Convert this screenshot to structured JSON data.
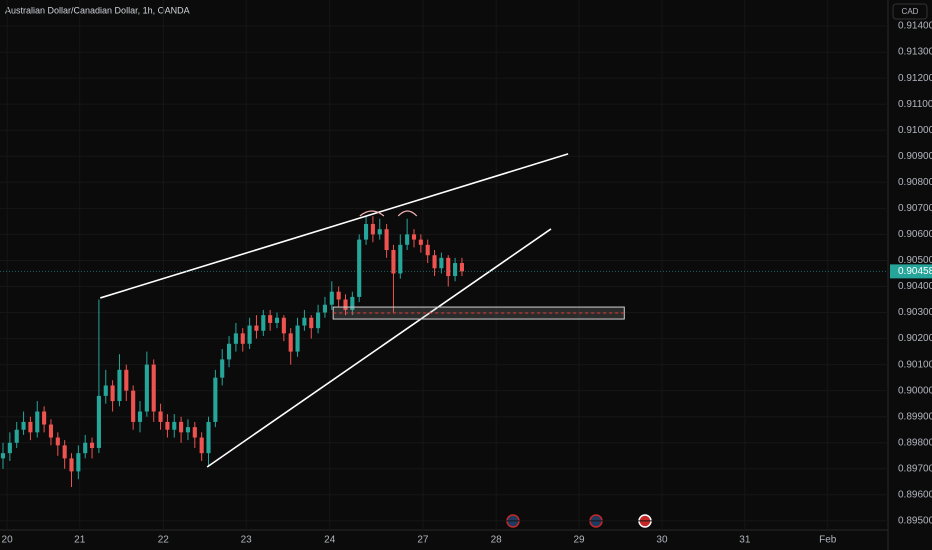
{
  "chart_data": {
    "type": "candlestick",
    "title": "Australian Dollar/Canadian Dollar, 1h, OANDA",
    "currency": "CAD",
    "up_color": "#26a69a",
    "down_color": "#ef5350",
    "open": [
      0.8974,
      0.8976,
      0.898,
      0.8985,
      0.8988,
      0.8984,
      0.8992,
      0.8987,
      0.8982,
      0.8979,
      0.8974,
      0.8969,
      0.8976,
      0.898,
      0.8978,
      0.8998,
      0.9002,
      0.8996,
      0.9008,
      0.9,
      0.8988,
      0.8992,
      0.901,
      0.8992,
      0.8988,
      0.8985,
      0.8988,
      0.8984,
      0.8986,
      0.8982,
      0.8976,
      0.8988,
      0.9005,
      0.9012,
      0.9018,
      0.9022,
      0.9018,
      0.9025,
      0.9023,
      0.9029,
      0.9026,
      0.9028,
      0.9022,
      0.9015,
      0.9025,
      0.9028,
      0.9024,
      0.903,
      0.9033,
      0.9038,
      0.9035,
      0.9031,
      0.9036,
      0.9058,
      0.9064,
      0.906,
      0.9062,
      0.9054,
      0.9045,
      0.9056,
      0.906,
      0.9058,
      0.9056,
      0.9052,
      0.9047,
      0.9051,
      0.9044,
      0.9049
    ],
    "high": [
      0.898,
      0.8984,
      0.8988,
      0.8992,
      0.899,
      0.8996,
      0.8994,
      0.8989,
      0.8984,
      0.8981,
      0.8976,
      0.8979,
      0.8983,
      0.8982,
      0.9035,
      0.9008,
      0.9004,
      0.9014,
      0.901,
      0.9002,
      0.8996,
      0.9015,
      0.9012,
      0.8995,
      0.8991,
      0.8991,
      0.899,
      0.8989,
      0.8988,
      0.8984,
      0.899,
      0.9008,
      0.9016,
      0.9021,
      0.9026,
      0.9024,
      0.9028,
      0.9029,
      0.9031,
      0.9031,
      0.903,
      0.9029,
      0.9024,
      0.9028,
      0.9031,
      0.9029,
      0.9033,
      0.9036,
      0.9042,
      0.904,
      0.9037,
      0.9038,
      0.906,
      0.9067,
      0.9067,
      0.9066,
      0.9064,
      0.9056,
      0.906,
      0.9066,
      0.9062,
      0.906,
      0.9058,
      0.9054,
      0.9053,
      0.9052,
      0.9051,
      0.9051
    ],
    "low": [
      0.897,
      0.8973,
      0.8978,
      0.8983,
      0.8981,
      0.8982,
      0.8984,
      0.8979,
      0.8975,
      0.897,
      0.8963,
      0.8966,
      0.8974,
      0.8974,
      0.8976,
      0.8995,
      0.8992,
      0.8994,
      0.8996,
      0.8985,
      0.8984,
      0.899,
      0.8988,
      0.8985,
      0.8982,
      0.8982,
      0.898,
      0.8981,
      0.8978,
      0.8973,
      0.8971,
      0.8986,
      0.9002,
      0.9009,
      0.9015,
      0.9015,
      0.9016,
      0.902,
      0.9021,
      0.9023,
      0.9024,
      0.9019,
      0.901,
      0.9013,
      0.9023,
      0.902,
      0.9022,
      0.9028,
      0.9031,
      0.9032,
      0.9029,
      0.9029,
      0.9034,
      0.9056,
      0.9057,
      0.9058,
      0.9051,
      0.903,
      0.9043,
      0.9054,
      0.9055,
      0.9053,
      0.9049,
      0.9044,
      0.9045,
      0.904,
      0.9042,
      0.9044
    ],
    "close": [
      0.8976,
      0.898,
      0.8985,
      0.8988,
      0.8984,
      0.8992,
      0.8987,
      0.8982,
      0.8979,
      0.8974,
      0.8969,
      0.8976,
      0.898,
      0.8978,
      0.8998,
      0.9002,
      0.8996,
      0.9008,
      0.9,
      0.8988,
      0.8992,
      0.901,
      0.8992,
      0.8988,
      0.8985,
      0.8988,
      0.8984,
      0.8986,
      0.8982,
      0.8976,
      0.8988,
      0.9005,
      0.9012,
      0.9018,
      0.9022,
      0.9018,
      0.9025,
      0.9023,
      0.9029,
      0.9026,
      0.9028,
      0.9022,
      0.9015,
      0.9025,
      0.9028,
      0.9024,
      0.903,
      0.9033,
      0.9038,
      0.9035,
      0.9031,
      0.9036,
      0.9058,
      0.9064,
      0.906,
      0.9062,
      0.9054,
      0.9045,
      0.9056,
      0.906,
      0.9058,
      0.9056,
      0.9052,
      0.9047,
      0.9051,
      0.9044,
      0.9049,
      0.90458
    ],
    "last_price": {
      "value": 0.90458,
      "label": "0.90458"
    },
    "xlim": [
      -0.44,
      129.2
    ],
    "xticks": [
      {
        "value": 0.6,
        "label": "20"
      },
      {
        "value": 11.2,
        "label": "21"
      },
      {
        "value": 23.4,
        "label": "22"
      },
      {
        "value": 35.5,
        "label": "23"
      },
      {
        "value": 47.7,
        "label": "24"
      },
      {
        "value": 61.3,
        "label": "27"
      },
      {
        "value": 72,
        "label": "28"
      },
      {
        "value": 84.1,
        "label": "29"
      },
      {
        "value": 96.2,
        "label": "30"
      },
      {
        "value": 108.3,
        "label": "31"
      },
      {
        "value": 120.4,
        "label": "Feb"
      }
    ],
    "ylim": [
      0.89465,
      0.915
    ],
    "yticks": [
      {
        "value": 0.895,
        "label": "0.89500"
      },
      {
        "value": 0.896,
        "label": "0.89600"
      },
      {
        "value": 0.897,
        "label": "0.89700"
      },
      {
        "value": 0.898,
        "label": "0.89800"
      },
      {
        "value": 0.899,
        "label": "0.89900"
      },
      {
        "value": 0.9,
        "label": "0.90000"
      },
      {
        "value": 0.901,
        "label": "0.90100"
      },
      {
        "value": 0.902,
        "label": "0.90200"
      },
      {
        "value": 0.903,
        "label": "0.90300"
      },
      {
        "value": 0.904,
        "label": "0.90400"
      },
      {
        "value": 0.905,
        "label": "0.90500"
      },
      {
        "value": 0.906,
        "label": "0.90600"
      },
      {
        "value": 0.907,
        "label": "0.90700"
      },
      {
        "value": 0.908,
        "label": "0.90800"
      },
      {
        "value": 0.909,
        "label": "0.90900"
      },
      {
        "value": 0.91,
        "label": "0.91000"
      },
      {
        "value": 0.911,
        "label": "0.91100"
      },
      {
        "value": 0.912,
        "label": "0.91200"
      },
      {
        "value": 0.913,
        "label": "0.91300"
      },
      {
        "value": 0.914,
        "label": "0.91400"
      }
    ],
    "grid": true,
    "trendlines": [
      {
        "x": [
          14.2,
          82.5
        ],
        "y": [
          0.90356,
          0.90909
        ]
      },
      {
        "x": [
          29.8,
          80
        ],
        "y": [
          0.89707,
          0.90621
        ]
      }
    ],
    "zone": {
      "x": [
        48.2,
        90.7
      ],
      "y": [
        0.90275,
        0.90321
      ],
      "mid": 0.90298
    },
    "arcs": [
      {
        "x": [
          52.1,
          55.6
        ],
        "y": 0.90686
      },
      {
        "x": [
          57.7,
          60.4
        ],
        "y": 0.90686
      }
    ]
  }
}
